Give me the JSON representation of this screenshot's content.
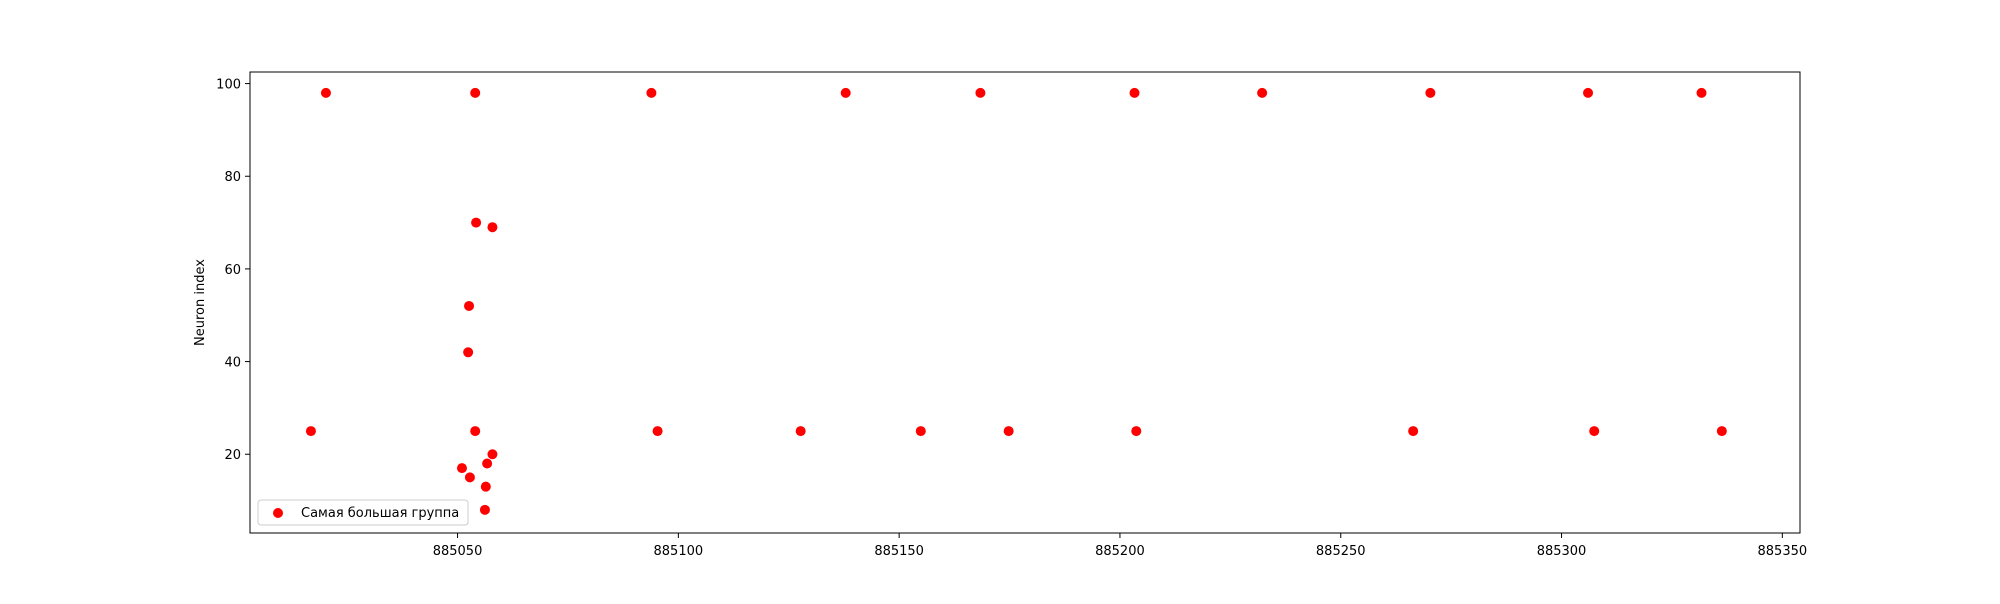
{
  "chart_data": {
    "type": "scatter",
    "title": "",
    "xlabel": "",
    "ylabel": "Neuron index",
    "xlim": [
      885003,
      885354
    ],
    "ylim": [
      3,
      102.5
    ],
    "xticks": [
      885050,
      885100,
      885150,
      885200,
      885250,
      885300,
      885350
    ],
    "yticks": [
      20,
      40,
      60,
      80,
      100
    ],
    "grid": false,
    "legend_position": "lower-left",
    "series": [
      {
        "name": "Самая большая группа",
        "color": "#ff0000",
        "points": [
          {
            "x": 885020.2,
            "y": 98
          },
          {
            "x": 885054.0,
            "y": 98
          },
          {
            "x": 885093.9,
            "y": 98
          },
          {
            "x": 885137.9,
            "y": 98
          },
          {
            "x": 885168.4,
            "y": 98
          },
          {
            "x": 885203.3,
            "y": 98
          },
          {
            "x": 885232.2,
            "y": 98
          },
          {
            "x": 885270.3,
            "y": 98
          },
          {
            "x": 885306.0,
            "y": 98
          },
          {
            "x": 885331.7,
            "y": 98
          },
          {
            "x": 885016.8,
            "y": 25
          },
          {
            "x": 885054.0,
            "y": 25
          },
          {
            "x": 885095.3,
            "y": 25
          },
          {
            "x": 885127.7,
            "y": 25
          },
          {
            "x": 885154.9,
            "y": 25
          },
          {
            "x": 885174.8,
            "y": 25
          },
          {
            "x": 885203.7,
            "y": 25
          },
          {
            "x": 885266.4,
            "y": 25
          },
          {
            "x": 885307.4,
            "y": 25
          },
          {
            "x": 885336.3,
            "y": 25
          },
          {
            "x": 885054.2,
            "y": 70
          },
          {
            "x": 885057.9,
            "y": 69
          },
          {
            "x": 885052.6,
            "y": 52
          },
          {
            "x": 885052.4,
            "y": 42
          },
          {
            "x": 885057.9,
            "y": 20
          },
          {
            "x": 885056.7,
            "y": 18
          },
          {
            "x": 885051.0,
            "y": 17
          },
          {
            "x": 885052.8,
            "y": 15
          },
          {
            "x": 885056.4,
            "y": 13
          },
          {
            "x": 885056.2,
            "y": 8
          }
        ]
      }
    ]
  }
}
